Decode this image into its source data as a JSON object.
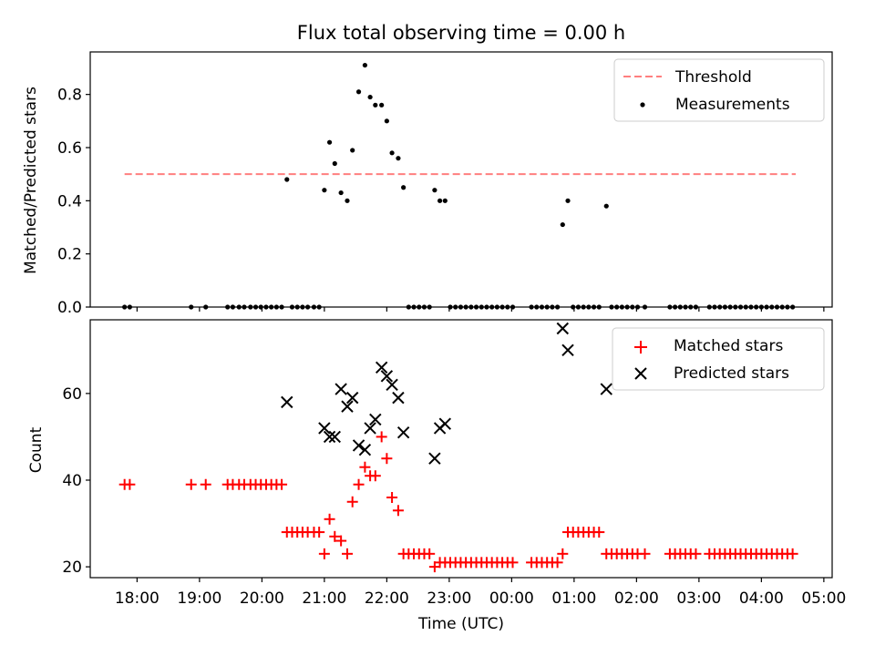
{
  "chart_data": [
    {
      "type": "scatter",
      "title": "Flux total observing time = 0.00 h",
      "xlabel": "",
      "ylabel": "Matched/Predicted stars",
      "ylim": [
        0,
        0.96
      ],
      "yticks": [
        0.0,
        0.2,
        0.4,
        0.6,
        0.8
      ],
      "ytick_labels": [
        "0.0",
        "0.2",
        "0.4",
        "0.6",
        "0.8"
      ],
      "legend_position": "top-right",
      "legend": [
        "Threshold",
        "Measurements"
      ],
      "threshold": {
        "name": "Threshold",
        "value": 0.5,
        "x_start": "17:48",
        "x_end": "04:33",
        "color": "#ff7f7f",
        "style": "dashed"
      },
      "series": [
        {
          "name": "Measurements",
          "marker": "dot",
          "color": "#000000",
          "points": [
            [
              "17:48",
              0
            ],
            [
              "17:53",
              0
            ],
            [
              "18:52",
              0
            ],
            [
              "19:06",
              0
            ],
            [
              "19:27",
              0
            ],
            [
              "19:32",
              0
            ],
            [
              "19:38",
              0
            ],
            [
              "19:43",
              0
            ],
            [
              "19:49",
              0
            ],
            [
              "19:54",
              0
            ],
            [
              "19:59",
              0
            ],
            [
              "20:04",
              0
            ],
            [
              "20:09",
              0
            ],
            [
              "20:14",
              0
            ],
            [
              "20:19",
              0
            ],
            [
              "20:24",
              0.48
            ],
            [
              "20:29",
              0
            ],
            [
              "20:34",
              0
            ],
            [
              "20:39",
              0
            ],
            [
              "20:44",
              0
            ],
            [
              "20:50",
              0
            ],
            [
              "20:55",
              0
            ],
            [
              "21:00",
              0.44
            ],
            [
              "21:05",
              0.62
            ],
            [
              "21:10",
              0.54
            ],
            [
              "21:16",
              0.43
            ],
            [
              "21:22",
              0.4
            ],
            [
              "21:27",
              0.59
            ],
            [
              "21:33",
              0.81
            ],
            [
              "21:39",
              0.91
            ],
            [
              "21:44",
              0.79
            ],
            [
              "21:49",
              0.76
            ],
            [
              "21:55",
              0.76
            ],
            [
              "22:00",
              0.7
            ],
            [
              "22:05",
              0.58
            ],
            [
              "22:11",
              0.56
            ],
            [
              "22:16",
              0.45
            ],
            [
              "22:21",
              0
            ],
            [
              "22:26",
              0
            ],
            [
              "22:31",
              0
            ],
            [
              "22:36",
              0
            ],
            [
              "22:41",
              0
            ],
            [
              "22:46",
              0.44
            ],
            [
              "22:51",
              0.4
            ],
            [
              "22:56",
              0.4
            ],
            [
              "23:01",
              0
            ],
            [
              "23:06",
              0
            ],
            [
              "23:11",
              0
            ],
            [
              "23:16",
              0
            ],
            [
              "23:21",
              0
            ],
            [
              "23:26",
              0
            ],
            [
              "23:31",
              0
            ],
            [
              "23:36",
              0
            ],
            [
              "23:41",
              0
            ],
            [
              "23:46",
              0
            ],
            [
              "23:51",
              0
            ],
            [
              "23:56",
              0
            ],
            [
              "00:01",
              0
            ],
            [
              "00:19",
              0
            ],
            [
              "00:24",
              0
            ],
            [
              "00:29",
              0
            ],
            [
              "00:34",
              0
            ],
            [
              "00:39",
              0
            ],
            [
              "00:44",
              0
            ],
            [
              "00:49",
              0.31
            ],
            [
              "00:54",
              0.4
            ],
            [
              "00:59",
              0
            ],
            [
              "01:04",
              0
            ],
            [
              "01:09",
              0
            ],
            [
              "01:14",
              0
            ],
            [
              "01:19",
              0
            ],
            [
              "01:24",
              0
            ],
            [
              "01:31",
              0.38
            ],
            [
              "01:36",
              0
            ],
            [
              "01:41",
              0
            ],
            [
              "01:46",
              0
            ],
            [
              "01:51",
              0
            ],
            [
              "01:56",
              0
            ],
            [
              "02:01",
              0
            ],
            [
              "02:08",
              0
            ],
            [
              "02:32",
              0
            ],
            [
              "02:37",
              0
            ],
            [
              "02:42",
              0
            ],
            [
              "02:47",
              0
            ],
            [
              "02:52",
              0
            ],
            [
              "02:57",
              0
            ],
            [
              "03:10",
              0
            ],
            [
              "03:15",
              0
            ],
            [
              "03:20",
              0
            ],
            [
              "03:25",
              0
            ],
            [
              "03:30",
              0
            ],
            [
              "03:35",
              0
            ],
            [
              "03:40",
              0
            ],
            [
              "03:45",
              0
            ],
            [
              "03:50",
              0
            ],
            [
              "03:55",
              0
            ],
            [
              "04:00",
              0
            ],
            [
              "04:05",
              0
            ],
            [
              "04:10",
              0
            ],
            [
              "04:15",
              0
            ],
            [
              "04:20",
              0
            ],
            [
              "04:25",
              0
            ],
            [
              "04:30",
              0
            ]
          ]
        }
      ]
    },
    {
      "type": "scatter",
      "title": "",
      "xlabel": "Time (UTC)",
      "ylabel": "Count",
      "ylim": [
        17.5,
        77
      ],
      "yticks": [
        20,
        40,
        60
      ],
      "ytick_labels": [
        "20",
        "40",
        "60"
      ],
      "xlim": [
        "17:15",
        "05:08"
      ],
      "xticks": [
        "18:00",
        "19:00",
        "20:00",
        "21:00",
        "22:00",
        "23:00",
        "00:00",
        "01:00",
        "02:00",
        "03:00",
        "04:00",
        "05:00"
      ],
      "xtick_labels": [
        "18:00",
        "19:00",
        "20:00",
        "21:00",
        "22:00",
        "23:00",
        "00:00",
        "01:00",
        "02:00",
        "03:00",
        "04:00",
        "05:00"
      ],
      "legend_position": "top-right",
      "legend": [
        "Matched stars",
        "Predicted stars"
      ],
      "series": [
        {
          "name": "Matched stars",
          "marker": "plus",
          "color": "#ff0000",
          "points": [
            [
              "17:48",
              39
            ],
            [
              "17:53",
              39
            ],
            [
              "18:52",
              39
            ],
            [
              "19:06",
              39
            ],
            [
              "19:27",
              39
            ],
            [
              "19:32",
              39
            ],
            [
              "19:38",
              39
            ],
            [
              "19:43",
              39
            ],
            [
              "19:49",
              39
            ],
            [
              "19:54",
              39
            ],
            [
              "19:59",
              39
            ],
            [
              "20:04",
              39
            ],
            [
              "20:09",
              39
            ],
            [
              "20:14",
              39
            ],
            [
              "20:19",
              39
            ],
            [
              "20:24",
              28
            ],
            [
              "20:29",
              28
            ],
            [
              "20:34",
              28
            ],
            [
              "20:39",
              28
            ],
            [
              "20:44",
              28
            ],
            [
              "20:50",
              28
            ],
            [
              "20:55",
              28
            ],
            [
              "21:00",
              23
            ],
            [
              "21:05",
              31
            ],
            [
              "21:10",
              27
            ],
            [
              "21:16",
              26
            ],
            [
              "21:22",
              23
            ],
            [
              "21:27",
              35
            ],
            [
              "21:33",
              39
            ],
            [
              "21:39",
              43
            ],
            [
              "21:44",
              41
            ],
            [
              "21:49",
              41
            ],
            [
              "21:55",
              50
            ],
            [
              "22:00",
              45
            ],
            [
              "22:05",
              36
            ],
            [
              "22:11",
              33
            ],
            [
              "22:16",
              23
            ],
            [
              "22:21",
              23
            ],
            [
              "22:26",
              23
            ],
            [
              "22:31",
              23
            ],
            [
              "22:36",
              23
            ],
            [
              "22:41",
              23
            ],
            [
              "22:46",
              20
            ],
            [
              "22:51",
              21
            ],
            [
              "22:56",
              21
            ],
            [
              "23:01",
              21
            ],
            [
              "23:06",
              21
            ],
            [
              "23:11",
              21
            ],
            [
              "23:16",
              21
            ],
            [
              "23:21",
              21
            ],
            [
              "23:26",
              21
            ],
            [
              "23:31",
              21
            ],
            [
              "23:36",
              21
            ],
            [
              "23:41",
              21
            ],
            [
              "23:46",
              21
            ],
            [
              "23:51",
              21
            ],
            [
              "23:56",
              21
            ],
            [
              "00:01",
              21
            ],
            [
              "00:19",
              21
            ],
            [
              "00:24",
              21
            ],
            [
              "00:29",
              21
            ],
            [
              "00:34",
              21
            ],
            [
              "00:39",
              21
            ],
            [
              "00:44",
              21
            ],
            [
              "00:49",
              23
            ],
            [
              "00:54",
              28
            ],
            [
              "00:59",
              28
            ],
            [
              "01:04",
              28
            ],
            [
              "01:09",
              28
            ],
            [
              "01:14",
              28
            ],
            [
              "01:19",
              28
            ],
            [
              "01:24",
              28
            ],
            [
              "01:31",
              23
            ],
            [
              "01:36",
              23
            ],
            [
              "01:41",
              23
            ],
            [
              "01:46",
              23
            ],
            [
              "01:51",
              23
            ],
            [
              "01:56",
              23
            ],
            [
              "02:01",
              23
            ],
            [
              "02:08",
              23
            ],
            [
              "02:32",
              23
            ],
            [
              "02:37",
              23
            ],
            [
              "02:42",
              23
            ],
            [
              "02:47",
              23
            ],
            [
              "02:52",
              23
            ],
            [
              "02:57",
              23
            ],
            [
              "03:10",
              23
            ],
            [
              "03:15",
              23
            ],
            [
              "03:20",
              23
            ],
            [
              "03:25",
              23
            ],
            [
              "03:30",
              23
            ],
            [
              "03:35",
              23
            ],
            [
              "03:40",
              23
            ],
            [
              "03:45",
              23
            ],
            [
              "03:50",
              23
            ],
            [
              "03:55",
              23
            ],
            [
              "04:00",
              23
            ],
            [
              "04:05",
              23
            ],
            [
              "04:10",
              23
            ],
            [
              "04:15",
              23
            ],
            [
              "04:20",
              23
            ],
            [
              "04:25",
              23
            ],
            [
              "04:30",
              23
            ]
          ]
        },
        {
          "name": "Predicted stars",
          "marker": "x",
          "color": "#000000",
          "points": [
            [
              "20:24",
              58
            ],
            [
              "21:00",
              52
            ],
            [
              "21:05",
              50
            ],
            [
              "21:10",
              50
            ],
            [
              "21:16",
              61
            ],
            [
              "21:22",
              57
            ],
            [
              "21:27",
              59
            ],
            [
              "21:33",
              48
            ],
            [
              "21:39",
              47
            ],
            [
              "21:44",
              52
            ],
            [
              "21:49",
              54
            ],
            [
              "21:55",
              66
            ],
            [
              "22:00",
              64
            ],
            [
              "22:05",
              62
            ],
            [
              "22:11",
              59
            ],
            [
              "22:16",
              51
            ],
            [
              "22:46",
              45
            ],
            [
              "22:51",
              52
            ],
            [
              "22:56",
              53
            ],
            [
              "00:49",
              75
            ],
            [
              "00:54",
              70
            ],
            [
              "01:31",
              61
            ]
          ]
        }
      ]
    }
  ]
}
